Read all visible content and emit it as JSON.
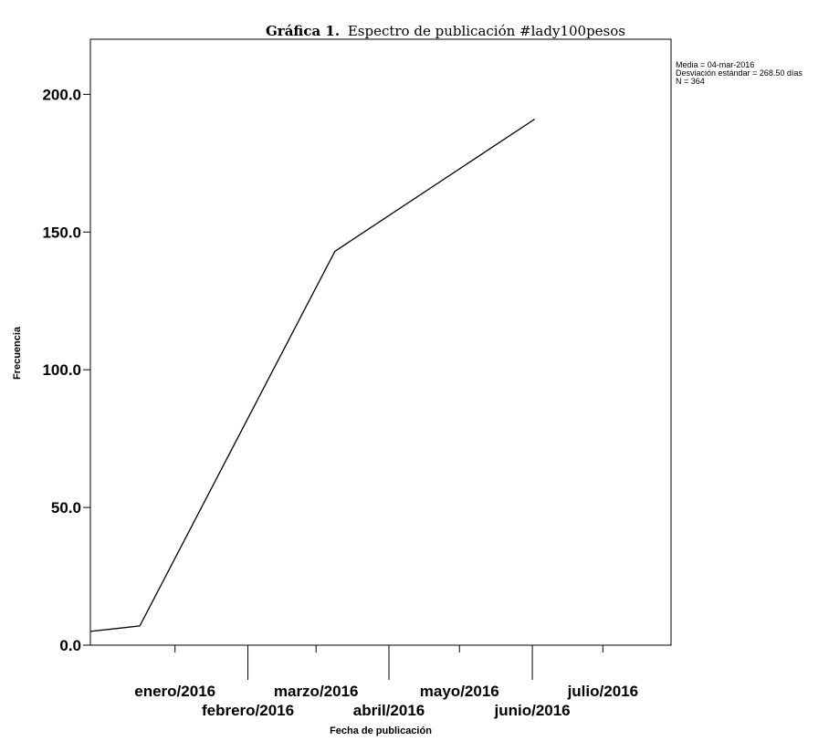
{
  "chart_data": {
    "type": "line",
    "title_prefix": "Gráfica 1.",
    "title": "Espectro de publicación #lady100pesos",
    "xlabel": "Fecha de publicación",
    "ylabel": "Frecuencia",
    "ylim": [
      0,
      220
    ],
    "y_ticks": [
      0,
      50,
      100,
      150,
      200
    ],
    "y_tick_labels": [
      "0.0",
      "50.0",
      "100.0",
      "150.0",
      "200.0"
    ],
    "x_range": [
      "2015-11-26",
      "2016-07-30"
    ],
    "x_ticks": [
      "2016-01-01",
      "2016-02-01",
      "2016-03-01",
      "2016-04-01",
      "2016-05-01",
      "2016-06-01",
      "2016-07-01"
    ],
    "x_tick_labels": [
      "enero/2016",
      "febrero/2016",
      "marzo/2016",
      "abril/2016",
      "mayo/2016",
      "junio/2016",
      "julio/2016"
    ],
    "series": [
      {
        "x": [
          "2015-11-26",
          "2015-12-17",
          "2016-03-09",
          "2016-06-02"
        ],
        "values": [
          5,
          7,
          143,
          191
        ]
      }
    ],
    "stats": [
      "Media = 04-mar-2016",
      "Desviación estándar = 268.50 días",
      "N = 364"
    ],
    "grid": false,
    "line_color": "#000000"
  }
}
